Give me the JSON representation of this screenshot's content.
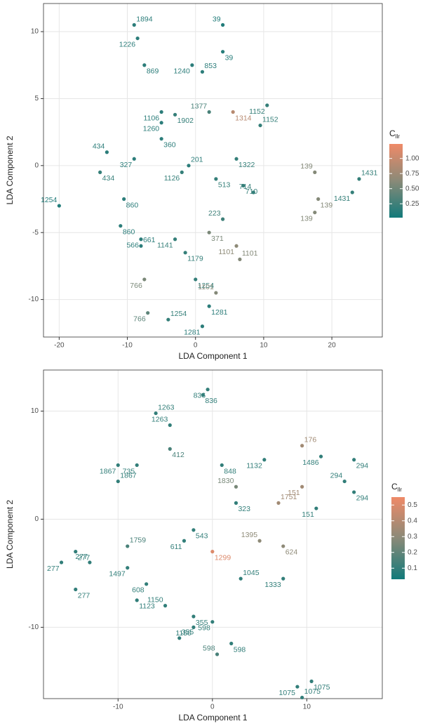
{
  "chart_data": [
    {
      "type": "scatter",
      "x_label": "LDA Component 1",
      "y_label": "LDA Component 2",
      "xlim": [
        -22.3,
        27.4
      ],
      "ylim": [
        -12.8,
        12.1
      ],
      "xticks": [
        -20,
        -10,
        0,
        10,
        20
      ],
      "yticks": [
        -10,
        -5,
        0,
        5,
        10
      ],
      "grid": true,
      "labels": [
        "1894",
        "1226",
        "869",
        "39",
        "39",
        "1240",
        "853",
        "1106",
        "1902",
        "1377",
        "1314",
        "1152",
        "1152",
        "1260",
        "360",
        "434",
        "434",
        "327",
        "201",
        "1126",
        "513",
        "139",
        "139",
        "139",
        "1431",
        "1431",
        "860",
        "1254",
        "860",
        "566",
        "661",
        "1141",
        "1179",
        "223",
        "371",
        "1101",
        "1101",
        "766",
        "1254",
        "1101",
        "1281",
        "766",
        "1254",
        "1281",
        "710",
        "714",
        "1322"
      ],
      "x": [
        -9,
        -8.5,
        -7.5,
        4,
        4,
        -0.5,
        1,
        -5,
        -3,
        2,
        5.5,
        10.5,
        9.5,
        -5,
        -5,
        -13,
        -14,
        -9,
        -1,
        -2,
        3,
        17.5,
        18,
        17.5,
        24,
        23,
        -10.5,
        -20,
        -11,
        -8,
        -8,
        -3,
        -1.5,
        4,
        2,
        6,
        6.5,
        -7.5,
        0,
        3,
        2,
        -7,
        -4,
        1,
        7,
        8.5,
        6
      ],
      "y": [
        10.5,
        9.5,
        7.5,
        10.5,
        8.5,
        7.5,
        7,
        4,
        3.8,
        4,
        4,
        4.5,
        3,
        3.2,
        2,
        1,
        -0.5,
        0.5,
        0,
        -0.5,
        -1,
        -0.5,
        -2.5,
        -3.5,
        -1,
        -2,
        -2.5,
        -3,
        -4.5,
        -5.5,
        -6,
        -5.5,
        -6.5,
        -4,
        -5,
        -6,
        -7,
        -8.5,
        -8.5,
        -9.5,
        -10.5,
        -11,
        -11.5,
        -12,
        -1.5,
        -2,
        0.5
      ],
      "cllr": [
        0.15,
        0.15,
        0.15,
        0.1,
        0.12,
        0.15,
        0.15,
        0.15,
        0.2,
        0.3,
        0.9,
        0.2,
        0.2,
        0.15,
        0.15,
        0.15,
        0.2,
        0.15,
        0.15,
        0.2,
        0.2,
        0.6,
        0.6,
        0.6,
        0.2,
        0.2,
        0.15,
        0.1,
        0.15,
        0.15,
        0.15,
        0.2,
        0.2,
        0.25,
        0.55,
        0.65,
        0.6,
        0.55,
        0.2,
        0.6,
        0.15,
        0.4,
        0.2,
        0.15,
        0.2,
        0.2,
        0.2
      ],
      "colorbar": {
        "title": "C",
        "title_sub": "llr",
        "lim": [
          0.02,
          1.24
        ],
        "ticks": [
          0.25,
          {
            "value": 0.5,
            "label": "0.50"
          },
          0.75,
          {
            "value": 1,
            "label": "1.00"
          }
        ],
        "colors": [
          "#127a7a",
          "#8a8a78",
          "#ef8a68"
        ]
      }
    },
    {
      "type": "scatter",
      "x_label": "LDA Component 1",
      "y_label": "LDA Component 2",
      "xlim": [
        -17.9,
        18
      ],
      "ylim": [
        -16.6,
        13.8
      ],
      "xticks": [
        -10,
        0,
        10
      ],
      "yticks": [
        -10,
        0,
        10
      ],
      "grid": true,
      "labels": [
        "1263",
        "836",
        "836",
        "1263",
        "412",
        "1132",
        "176",
        "1486",
        "294",
        "294",
        "294",
        "1867",
        "1867",
        "735",
        "848",
        "1830",
        "323",
        "151",
        "1751",
        "151",
        "1299",
        "1395",
        "624",
        "1333",
        "1045",
        "277",
        "277",
        "277",
        "277",
        "1497",
        "1759",
        "608",
        "1123",
        "1150",
        "355",
        "1150",
        "355",
        "598",
        "598",
        "598",
        "1075",
        "1075",
        "1075",
        "611",
        "543"
      ],
      "x": [
        -6,
        -0.5,
        -1,
        -4.5,
        -4.5,
        5.5,
        9.5,
        11.5,
        15,
        14,
        15,
        -10,
        -10,
        -8,
        1,
        2.5,
        2.5,
        9.5,
        7,
        11,
        0,
        5,
        7.5,
        7.5,
        3,
        -16,
        -14.5,
        -13,
        -14.5,
        -9,
        -9,
        -7,
        -8,
        -5,
        -2,
        -2,
        -3.5,
        0,
        2,
        0.5,
        10.5,
        9,
        9.5,
        -3,
        -2
      ],
      "y": [
        9.8,
        12,
        11.5,
        8.7,
        6.5,
        5.5,
        6.8,
        5.8,
        5.5,
        3.5,
        2.5,
        5,
        3.5,
        5,
        5,
        3,
        1.5,
        3,
        1.5,
        1,
        -3,
        -2,
        -2.5,
        -5.5,
        -5.5,
        -4,
        -3,
        -4,
        -6.5,
        -4.5,
        -2.5,
        -6,
        -7.5,
        -8,
        -9,
        -10,
        -11,
        -9.5,
        -11.5,
        -12.5,
        -15,
        -15.5,
        -16.5,
        -2,
        -1
      ],
      "cllr": [
        0.1,
        0.1,
        0.1,
        0.1,
        0.15,
        0.1,
        0.35,
        0.1,
        0.1,
        0.1,
        0.1,
        0.1,
        0.1,
        0.1,
        0.1,
        0.25,
        0.1,
        0.35,
        0.35,
        0.1,
        0.5,
        0.3,
        0.3,
        0.1,
        0.1,
        0.1,
        0.1,
        0.1,
        0.1,
        0.1,
        0.15,
        0.1,
        0.1,
        0.1,
        0.1,
        0.1,
        0.1,
        0.1,
        0.1,
        0.15,
        0.1,
        0.1,
        0.1,
        0.1,
        0.1
      ],
      "colorbar": {
        "title": "C",
        "title_sub": "llr",
        "lim": [
          0.03,
          0.55
        ],
        "ticks": [
          0.1,
          0.2,
          0.3,
          0.4,
          0.5
        ],
        "colors": [
          "#127a7a",
          "#8a8a78",
          "#ef8a68"
        ]
      }
    }
  ]
}
